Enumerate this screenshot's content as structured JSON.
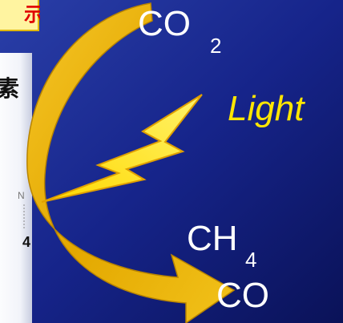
{
  "labels": {
    "co2": "CO",
    "co2_sub": "2",
    "light": "Light",
    "ch4": "CH",
    "ch4_sub": "4",
    "co": "CO"
  },
  "panel": {
    "tag": "示",
    "char": "素",
    "atom": "N",
    "sub": "4"
  }
}
